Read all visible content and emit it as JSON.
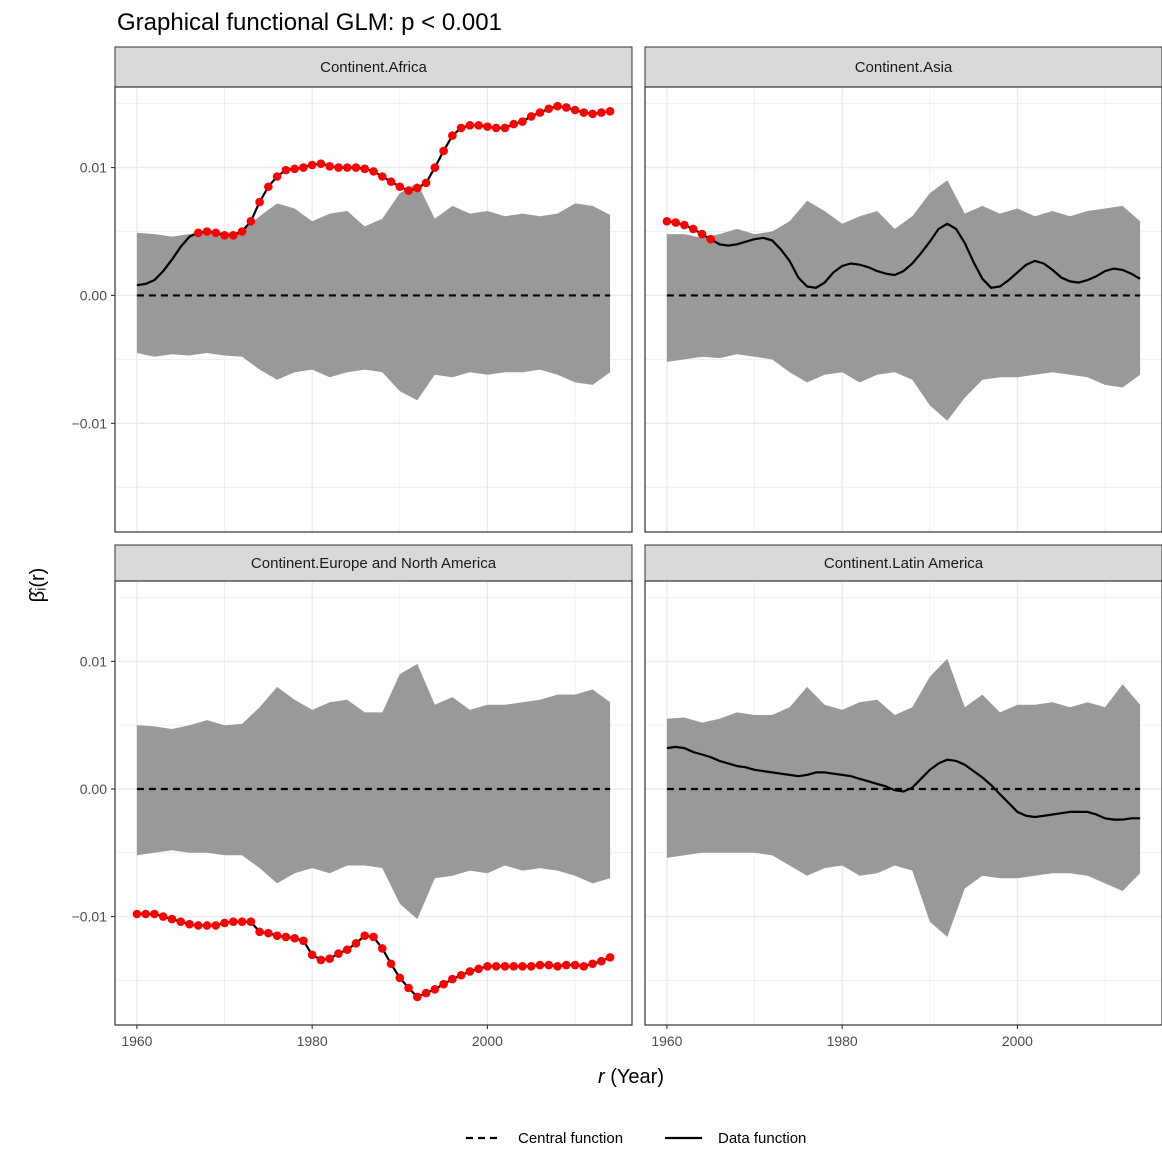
{
  "title": "Graphical functional GLM: p < 0.001",
  "xlabel_italic": "r",
  "xlabel_rest": " (Year)",
  "ylabel": "β̂ᵢ(r)",
  "legend": {
    "central_label": "Central function",
    "data_label": "Data function"
  },
  "colors": {
    "envelope": "#999999",
    "central": "#000000",
    "data": "#000000",
    "significant_points": "#ff0000",
    "strip_bg": "#d9d9d9",
    "grid": "#ebebeb"
  },
  "chart_data": {
    "type": "line",
    "xlim": [
      1957.5,
      2016.5
    ],
    "ylim": [
      -0.0185,
      0.0163
    ],
    "x_ticks": [
      1960,
      1980,
      2000
    ],
    "x_tick_labels": [
      "1960",
      "1980",
      "2000"
    ],
    "y_ticks": [
      -0.01,
      0.0,
      0.01
    ],
    "y_tick_labels": [
      "−0.01",
      "0.00",
      "0.01"
    ],
    "grid": true,
    "legend_position": "bottom",
    "panels": [
      {
        "strip": "Continent.Africa",
        "envelope_x": [
          1960,
          1962,
          1964,
          1966,
          1968,
          1970,
          1972,
          1974,
          1976,
          1978,
          1980,
          1982,
          1984,
          1986,
          1988,
          1990,
          1992,
          1994,
          1996,
          1998,
          2000,
          2002,
          2004,
          2006,
          2008,
          2010,
          2012,
          2014
        ],
        "envelope_upper": [
          0.0049,
          0.0048,
          0.0046,
          0.0048,
          0.0051,
          0.0049,
          0.005,
          0.0062,
          0.0072,
          0.0068,
          0.0058,
          0.0064,
          0.0066,
          0.0054,
          0.006,
          0.008,
          0.0088,
          0.006,
          0.007,
          0.0064,
          0.0066,
          0.0062,
          0.0064,
          0.0062,
          0.0064,
          0.0072,
          0.007,
          0.0063
        ],
        "envelope_lower": [
          -0.0045,
          -0.0048,
          -0.0046,
          -0.0047,
          -0.0045,
          -0.0047,
          -0.0048,
          -0.0058,
          -0.0066,
          -0.006,
          -0.0058,
          -0.0064,
          -0.006,
          -0.0058,
          -0.006,
          -0.0075,
          -0.0082,
          -0.0062,
          -0.0064,
          -0.006,
          -0.0062,
          -0.006,
          -0.006,
          -0.0058,
          -0.0062,
          -0.0068,
          -0.007,
          -0.006
        ],
        "central_x": [
          1960,
          2014
        ],
        "central_y": [
          0.0,
          0.0
        ],
        "data_x": [
          1960,
          1961,
          1962,
          1963,
          1964,
          1965,
          1966,
          1967,
          1968,
          1969,
          1970,
          1971,
          1972,
          1973,
          1974,
          1975,
          1976,
          1977,
          1978,
          1979,
          1980,
          1981,
          1982,
          1983,
          1984,
          1985,
          1986,
          1987,
          1988,
          1989,
          1990,
          1991,
          1992,
          1993,
          1994,
          1995,
          1996,
          1997,
          1998,
          1999,
          2000,
          2001,
          2002,
          2003,
          2004,
          2005,
          2006,
          2007,
          2008,
          2009,
          2010,
          2011,
          2012,
          2013,
          2014
        ],
        "data_y": [
          0.0008,
          0.0009,
          0.0012,
          0.0019,
          0.0028,
          0.0038,
          0.0046,
          0.0049,
          0.005,
          0.0049,
          0.0047,
          0.0047,
          0.005,
          0.0058,
          0.0073,
          0.0085,
          0.0093,
          0.0098,
          0.0099,
          0.01,
          0.0102,
          0.0103,
          0.0101,
          0.01,
          0.01,
          0.01,
          0.0099,
          0.0097,
          0.0093,
          0.0089,
          0.0085,
          0.0082,
          0.0084,
          0.0088,
          0.01,
          0.0113,
          0.0125,
          0.0131,
          0.0133,
          0.0133,
          0.0132,
          0.0131,
          0.0131,
          0.0134,
          0.0136,
          0.014,
          0.0143,
          0.0146,
          0.0148,
          0.0147,
          0.0145,
          0.0143,
          0.0142,
          0.0143,
          0.0144
        ],
        "significant": [
          false,
          false,
          false,
          false,
          false,
          false,
          false,
          true,
          true,
          true,
          true,
          true,
          true,
          true,
          true,
          true,
          true,
          true,
          true,
          true,
          true,
          true,
          true,
          true,
          true,
          true,
          true,
          true,
          true,
          true,
          true,
          true,
          true,
          true,
          true,
          true,
          true,
          true,
          true,
          true,
          true,
          true,
          true,
          true,
          true,
          true,
          true,
          true,
          true,
          true,
          true,
          true,
          true,
          true,
          true
        ]
      },
      {
        "strip": "Continent.Asia",
        "envelope_x": [
          1960,
          1962,
          1964,
          1966,
          1968,
          1970,
          1972,
          1974,
          1976,
          1978,
          1980,
          1982,
          1984,
          1986,
          1988,
          1990,
          1992,
          1994,
          1996,
          1998,
          2000,
          2002,
          2004,
          2006,
          2008,
          2010,
          2012,
          2014
        ],
        "envelope_upper": [
          0.0048,
          0.0048,
          0.0045,
          0.0048,
          0.0052,
          0.0048,
          0.005,
          0.0058,
          0.0074,
          0.0066,
          0.0056,
          0.0062,
          0.0066,
          0.0052,
          0.0062,
          0.008,
          0.009,
          0.0064,
          0.007,
          0.0064,
          0.0068,
          0.0062,
          0.0066,
          0.0062,
          0.0066,
          0.0068,
          0.007,
          0.0058
        ],
        "envelope_lower": [
          -0.0052,
          -0.005,
          -0.0048,
          -0.0049,
          -0.0046,
          -0.0048,
          -0.005,
          -0.006,
          -0.0068,
          -0.0062,
          -0.006,
          -0.0068,
          -0.0062,
          -0.006,
          -0.0066,
          -0.0086,
          -0.0098,
          -0.008,
          -0.0066,
          -0.0064,
          -0.0064,
          -0.0062,
          -0.006,
          -0.0062,
          -0.0064,
          -0.007,
          -0.0072,
          -0.0062
        ],
        "central_x": [
          1960,
          2014
        ],
        "central_y": [
          0.0,
          0.0
        ],
        "data_x": [
          1960,
          1961,
          1962,
          1963,
          1964,
          1965,
          1966,
          1967,
          1968,
          1969,
          1970,
          1971,
          1972,
          1973,
          1974,
          1975,
          1976,
          1977,
          1978,
          1979,
          1980,
          1981,
          1982,
          1983,
          1984,
          1985,
          1986,
          1987,
          1988,
          1989,
          1990,
          1991,
          1992,
          1993,
          1994,
          1995,
          1996,
          1997,
          1998,
          1999,
          2000,
          2001,
          2002,
          2003,
          2004,
          2005,
          2006,
          2007,
          2008,
          2009,
          2010,
          2011,
          2012,
          2013,
          2014
        ],
        "data_y": [
          0.0058,
          0.0057,
          0.0055,
          0.0052,
          0.0048,
          0.0044,
          0.004,
          0.0039,
          0.004,
          0.0042,
          0.0044,
          0.0045,
          0.0043,
          0.0036,
          0.0027,
          0.0014,
          0.0007,
          0.0006,
          0.001,
          0.0018,
          0.0023,
          0.0025,
          0.0024,
          0.0022,
          0.0019,
          0.0017,
          0.0016,
          0.0019,
          0.0025,
          0.0033,
          0.0042,
          0.0052,
          0.0056,
          0.0052,
          0.0041,
          0.0026,
          0.0013,
          0.0006,
          0.0007,
          0.0012,
          0.0018,
          0.0024,
          0.0027,
          0.0025,
          0.002,
          0.0014,
          0.0011,
          0.001,
          0.0012,
          0.0015,
          0.0019,
          0.0021,
          0.002,
          0.0017,
          0.0013
        ],
        "significant": [
          true,
          true,
          true,
          true,
          true,
          true,
          false,
          false,
          false,
          false,
          false,
          false,
          false,
          false,
          false,
          false,
          false,
          false,
          false,
          false,
          false,
          false,
          false,
          false,
          false,
          false,
          false,
          false,
          false,
          false,
          false,
          false,
          false,
          false,
          false,
          false,
          false,
          false,
          false,
          false,
          false,
          false,
          false,
          false,
          false,
          false,
          false,
          false,
          false,
          false,
          false,
          false,
          false,
          false,
          false
        ]
      },
      {
        "strip": "Continent.Europe and North America",
        "envelope_x": [
          1960,
          1962,
          1964,
          1966,
          1968,
          1970,
          1972,
          1974,
          1976,
          1978,
          1980,
          1982,
          1984,
          1986,
          1988,
          1990,
          1992,
          1994,
          1996,
          1998,
          2000,
          2002,
          2004,
          2006,
          2008,
          2010,
          2012,
          2014
        ],
        "envelope_upper": [
          0.005,
          0.0049,
          0.0047,
          0.005,
          0.0054,
          0.005,
          0.0051,
          0.0064,
          0.008,
          0.007,
          0.0062,
          0.0068,
          0.007,
          0.006,
          0.006,
          0.009,
          0.0098,
          0.0066,
          0.0072,
          0.0062,
          0.0066,
          0.0066,
          0.0068,
          0.007,
          0.0074,
          0.0074,
          0.0078,
          0.0068
        ],
        "envelope_lower": [
          -0.0052,
          -0.005,
          -0.0048,
          -0.005,
          -0.005,
          -0.0052,
          -0.0052,
          -0.0062,
          -0.0074,
          -0.0066,
          -0.0062,
          -0.0066,
          -0.006,
          -0.006,
          -0.0062,
          -0.009,
          -0.0102,
          -0.007,
          -0.0068,
          -0.0064,
          -0.0066,
          -0.006,
          -0.0064,
          -0.0062,
          -0.0064,
          -0.0068,
          -0.0074,
          -0.007
        ],
        "central_x": [
          1960,
          2014
        ],
        "central_y": [
          0.0,
          0.0
        ],
        "data_x": [
          1960,
          1961,
          1962,
          1963,
          1964,
          1965,
          1966,
          1967,
          1968,
          1969,
          1970,
          1971,
          1972,
          1973,
          1974,
          1975,
          1976,
          1977,
          1978,
          1979,
          1980,
          1981,
          1982,
          1983,
          1984,
          1985,
          1986,
          1987,
          1988,
          1989,
          1990,
          1991,
          1992,
          1993,
          1994,
          1995,
          1996,
          1997,
          1998,
          1999,
          2000,
          2001,
          2002,
          2003,
          2004,
          2005,
          2006,
          2007,
          2008,
          2009,
          2010,
          2011,
          2012,
          2013,
          2014
        ],
        "data_y": [
          -0.0098,
          -0.0098,
          -0.0098,
          -0.01,
          -0.0102,
          -0.0104,
          -0.0106,
          -0.0107,
          -0.0107,
          -0.0107,
          -0.0105,
          -0.0104,
          -0.0104,
          -0.0104,
          -0.0112,
          -0.0113,
          -0.0115,
          -0.0116,
          -0.0117,
          -0.0119,
          -0.013,
          -0.0134,
          -0.0133,
          -0.0129,
          -0.0126,
          -0.0121,
          -0.0115,
          -0.0116,
          -0.0125,
          -0.0137,
          -0.0148,
          -0.0156,
          -0.0163,
          -0.016,
          -0.0157,
          -0.0153,
          -0.0149,
          -0.0146,
          -0.0143,
          -0.0141,
          -0.0139,
          -0.0139,
          -0.0139,
          -0.0139,
          -0.0139,
          -0.0139,
          -0.0138,
          -0.0138,
          -0.0139,
          -0.0138,
          -0.0138,
          -0.0139,
          -0.0137,
          -0.0135,
          -0.0132
        ],
        "significant": [
          true,
          true,
          true,
          true,
          true,
          true,
          true,
          true,
          true,
          true,
          true,
          true,
          true,
          true,
          true,
          true,
          true,
          true,
          true,
          true,
          true,
          true,
          true,
          true,
          true,
          true,
          true,
          true,
          true,
          true,
          true,
          true,
          true,
          true,
          true,
          true,
          true,
          true,
          true,
          true,
          true,
          true,
          true,
          true,
          true,
          true,
          true,
          true,
          true,
          true,
          true,
          true,
          true,
          true,
          true
        ]
      },
      {
        "strip": "Continent.Latin America",
        "envelope_x": [
          1960,
          1962,
          1964,
          1966,
          1968,
          1970,
          1972,
          1974,
          1976,
          1978,
          1980,
          1982,
          1984,
          1986,
          1988,
          1990,
          1992,
          1994,
          1996,
          1998,
          2000,
          2002,
          2004,
          2006,
          2008,
          2010,
          2012,
          2014
        ],
        "envelope_upper": [
          0.0055,
          0.0056,
          0.0052,
          0.0055,
          0.006,
          0.0058,
          0.0058,
          0.0064,
          0.008,
          0.0066,
          0.0062,
          0.0068,
          0.007,
          0.0058,
          0.0064,
          0.0088,
          0.0102,
          0.0064,
          0.0074,
          0.006,
          0.0066,
          0.0066,
          0.0068,
          0.0064,
          0.0068,
          0.0064,
          0.0082,
          0.0066
        ],
        "envelope_lower": [
          -0.0054,
          -0.0052,
          -0.005,
          -0.005,
          -0.005,
          -0.005,
          -0.0052,
          -0.006,
          -0.0068,
          -0.0062,
          -0.006,
          -0.0068,
          -0.0066,
          -0.006,
          -0.0064,
          -0.0104,
          -0.0116,
          -0.0078,
          -0.0068,
          -0.007,
          -0.007,
          -0.0068,
          -0.0066,
          -0.0066,
          -0.0068,
          -0.0074,
          -0.008,
          -0.0066
        ],
        "central_x": [
          1960,
          2014
        ],
        "central_y": [
          0.0,
          0.0
        ],
        "data_x": [
          1960,
          1961,
          1962,
          1963,
          1964,
          1965,
          1966,
          1967,
          1968,
          1969,
          1970,
          1971,
          1972,
          1973,
          1974,
          1975,
          1976,
          1977,
          1978,
          1979,
          1980,
          1981,
          1982,
          1983,
          1984,
          1985,
          1986,
          1987,
          1988,
          1989,
          1990,
          1991,
          1992,
          1993,
          1994,
          1995,
          1996,
          1997,
          1998,
          1999,
          2000,
          2001,
          2002,
          2003,
          2004,
          2005,
          2006,
          2007,
          2008,
          2009,
          2010,
          2011,
          2012,
          2013,
          2014
        ],
        "data_y": [
          0.0032,
          0.0033,
          0.0032,
          0.0029,
          0.0027,
          0.0025,
          0.0022,
          0.002,
          0.0018,
          0.0017,
          0.0015,
          0.0014,
          0.0013,
          0.0012,
          0.0011,
          0.001,
          0.0011,
          0.0013,
          0.0013,
          0.0012,
          0.0011,
          0.001,
          0.0008,
          0.0006,
          0.0004,
          0.0002,
          -0.0001,
          -0.0002,
          0.0001,
          0.0008,
          0.0015,
          0.002,
          0.0023,
          0.0022,
          0.0019,
          0.0014,
          0.0009,
          0.0003,
          -0.0004,
          -0.0011,
          -0.0018,
          -0.0021,
          -0.0022,
          -0.0021,
          -0.002,
          -0.0019,
          -0.0018,
          -0.0018,
          -0.0018,
          -0.002,
          -0.0023,
          -0.0024,
          -0.0024,
          -0.0023,
          -0.0023
        ],
        "significant": [
          false,
          false,
          false,
          false,
          false,
          false,
          false,
          false,
          false,
          false,
          false,
          false,
          false,
          false,
          false,
          false,
          false,
          false,
          false,
          false,
          false,
          false,
          false,
          false,
          false,
          false,
          false,
          false,
          false,
          false,
          false,
          false,
          false,
          false,
          false,
          false,
          false,
          false,
          false,
          false,
          false,
          false,
          false,
          false,
          false,
          false,
          false,
          false,
          false,
          false,
          false,
          false,
          false,
          false,
          false
        ]
      }
    ]
  }
}
